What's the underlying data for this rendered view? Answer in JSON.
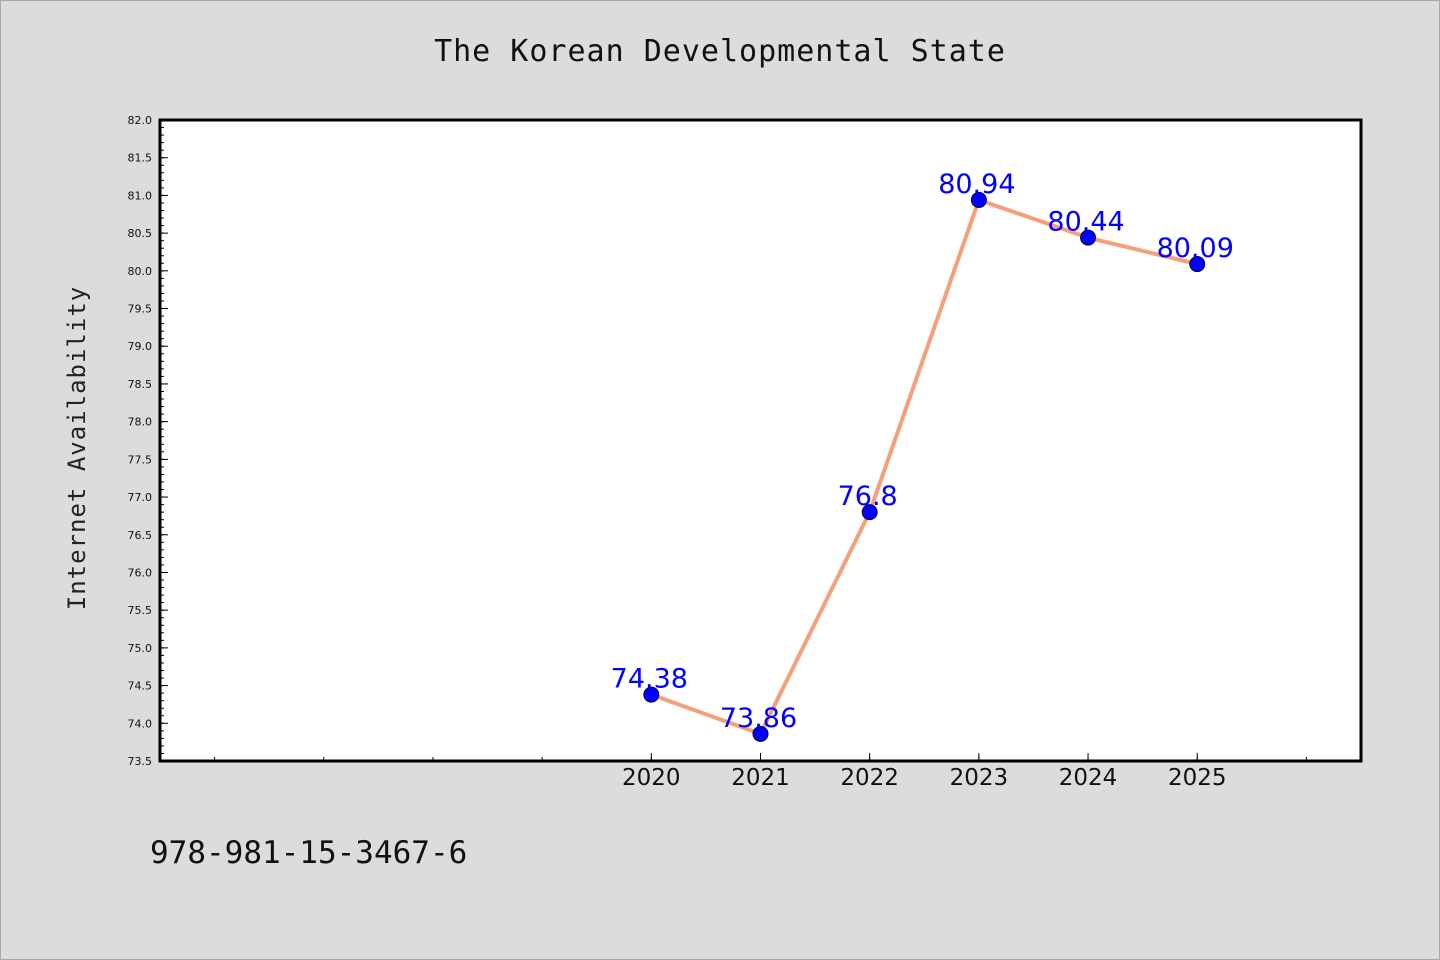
{
  "footer": {
    "code": "978-981-15-3467-6"
  },
  "chart_data": {
    "type": "line",
    "title": "The Korean Developmental State",
    "xlabel": "",
    "ylabel": "Internet Availability",
    "x": [
      2020,
      2021,
      2022,
      2023,
      2024,
      2025
    ],
    "x_tick_labels": [
      "2020",
      "2021",
      "2022",
      "2023",
      "2024",
      "2025"
    ],
    "xlim": [
      2015.5,
      2026.5
    ],
    "series": [
      {
        "values": [
          74.38,
          73.86,
          76.8,
          80.94,
          80.44,
          80.09
        ],
        "data_labels": [
          "74.38",
          "73.86",
          "76.8",
          "80.94",
          "80.44",
          "80.09"
        ]
      }
    ],
    "ylim": [
      73.5,
      82.0
    ],
    "y_ticks": [
      73.5,
      74.0,
      74.5,
      75.0,
      75.5,
      76.0,
      76.5,
      77.0,
      77.5,
      78.0,
      78.5,
      79.0,
      79.5,
      80.0,
      80.5,
      81.0,
      81.5,
      82.0
    ],
    "y_tick_labels": [
      "73.5",
      "74.0",
      "74.5",
      "75.0",
      "75.5",
      "76.0",
      "76.5",
      "77.0",
      "77.5",
      "78.0",
      "78.5",
      "79.0",
      "79.5",
      "80.0",
      "80.5",
      "81.0",
      "81.5",
      "82.0"
    ],
    "grid": false,
    "legend": "none",
    "colors": {
      "line": "#f5a07a",
      "marker": "#0000ff",
      "data_label": "#0000ff",
      "plot_background": "#ffffff",
      "page_background": "#dcdcdc"
    }
  }
}
